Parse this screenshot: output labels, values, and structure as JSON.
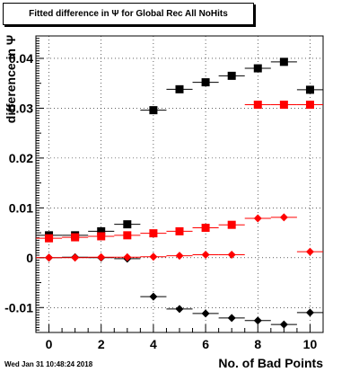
{
  "title": "Fitted difference in Ψ  for Global Rec All NoHits",
  "ylabel": "difference in Ψ",
  "xlabel": "No. of Bad Points",
  "datestamp": "Wed Jan 31 10:48:24 2018",
  "colors": {
    "black_series": "#000000",
    "red_series": "#ff0000"
  },
  "chart_data": {
    "type": "scatter",
    "title": "Fitted difference in Ψ  for Global Rec All NoHits",
    "xlabel": "No. of Bad Points",
    "ylabel": "difference in Ψ",
    "xlim": [
      -0.5,
      10.5
    ],
    "ylim": [
      -0.015,
      0.0445
    ],
    "grid": true,
    "x_ticks": [
      0,
      2,
      4,
      6,
      8,
      10
    ],
    "x_tick_labels": [
      "0",
      "2",
      "4",
      "6",
      "8",
      "10"
    ],
    "y_ticks": [
      -0.01,
      0,
      0.01,
      0.02,
      0.03,
      0.04
    ],
    "y_tick_labels": [
      "-0.01",
      "0",
      "0.01",
      "0.02",
      "0.03",
      "0.04"
    ],
    "x_error": 0.5,
    "series": [
      {
        "marker": "square",
        "color": "#000000",
        "x": [
          0,
          1,
          2,
          3,
          4,
          5,
          6,
          7,
          8,
          9,
          10
        ],
        "y": [
          0.0045,
          0.0045,
          0.0053,
          0.0067,
          0.0296,
          0.0338,
          0.0352,
          0.0365,
          0.038,
          0.0393,
          0.0337
        ]
      },
      {
        "marker": "square",
        "color": "#ff0000",
        "x": [
          0,
          1,
          2,
          3,
          4,
          5,
          6,
          7,
          8,
          9,
          10
        ],
        "y": [
          0.0039,
          0.0041,
          0.0043,
          0.0045,
          0.0049,
          0.0053,
          0.006,
          0.0066,
          0.0307,
          0.0307,
          0.0307
        ]
      },
      {
        "marker": "diamond",
        "color": "#000000",
        "x": [
          0,
          1,
          2,
          3,
          4,
          5,
          6,
          7,
          8,
          9,
          10
        ],
        "y": [
          0.0,
          0.0001,
          0.0,
          -0.0002,
          -0.0078,
          -0.0103,
          -0.0112,
          -0.0121,
          -0.0126,
          -0.0134,
          -0.011
        ]
      },
      {
        "marker": "diamond",
        "color": "#ff0000",
        "x": [
          0,
          1,
          2,
          3,
          4,
          5,
          6,
          7,
          8,
          9,
          10
        ],
        "y": [
          0.0,
          0.0,
          0.0001,
          0.0001,
          0.0002,
          0.0004,
          0.0006,
          0.0006,
          0.0079,
          0.0081,
          0.0012
        ]
      }
    ]
  }
}
